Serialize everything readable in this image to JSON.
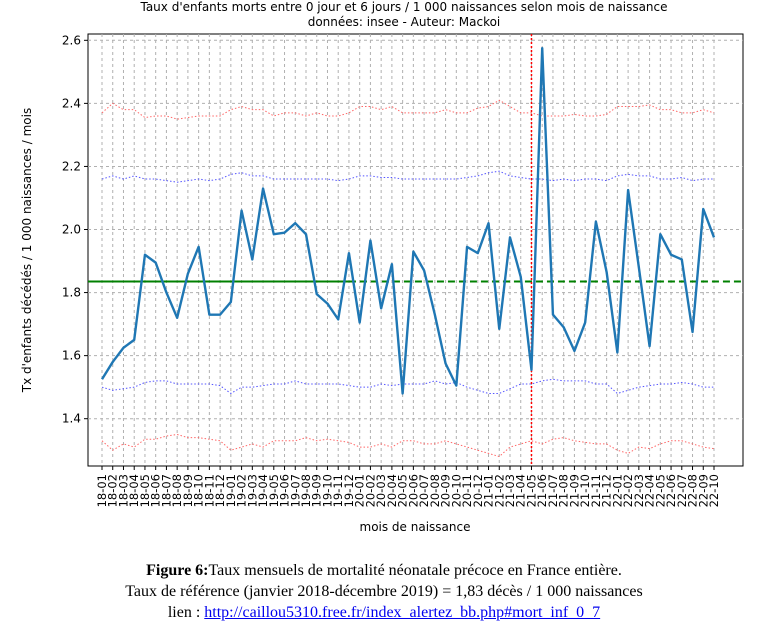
{
  "chart_data": {
    "type": "line",
    "title": "Taux d'enfants morts entre 0 jour et 6 jours / 1 000 naissances selon mois de naissance",
    "subtitle": "données: insee - Auteur: Mackoi",
    "xlabel": "mois de naissance",
    "ylabel": "Tx d'enfants décédés / 1 000 naissances / mois",
    "ylim": [
      1.25,
      2.62
    ],
    "yticks": [
      1.4,
      1.6,
      1.8,
      2.0,
      2.2,
      2.4,
      2.6
    ],
    "grid": true,
    "categories": [
      "18-01",
      "18-02",
      "18-03",
      "18-04",
      "18-05",
      "18-06",
      "18-07",
      "18-08",
      "18-09",
      "18-10",
      "18-11",
      "18-12",
      "19-01",
      "19-02",
      "19-03",
      "19-04",
      "19-05",
      "19-06",
      "19-07",
      "19-08",
      "19-09",
      "19-10",
      "19-11",
      "19-12",
      "20-01",
      "20-02",
      "20-03",
      "20-04",
      "20-05",
      "20-06",
      "20-07",
      "20-08",
      "20-09",
      "20-10",
      "20-11",
      "20-12",
      "21-01",
      "21-02",
      "21-03",
      "21-04",
      "21-05",
      "21-06",
      "21-07",
      "21-08",
      "21-09",
      "21-10",
      "21-11",
      "21-12",
      "22-01",
      "22-02",
      "22-03",
      "22-04",
      "22-05",
      "22-06",
      "22-07",
      "22-08",
      "22-09",
      "22-10"
    ],
    "series": [
      {
        "role": "rate",
        "color": "#1f77b4",
        "values": [
          1.525,
          1.58,
          1.625,
          1.65,
          1.92,
          1.895,
          1.8,
          1.72,
          1.86,
          1.945,
          1.73,
          1.73,
          1.77,
          2.06,
          1.905,
          2.13,
          1.985,
          1.99,
          2.02,
          1.985,
          1.795,
          1.765,
          1.715,
          1.925,
          1.705,
          1.965,
          1.75,
          1.89,
          1.48,
          1.93,
          1.87,
          1.73,
          1.575,
          1.505,
          1.945,
          1.925,
          2.02,
          1.685,
          1.975,
          1.85,
          1.555,
          2.575,
          1.73,
          1.69,
          1.615,
          1.705,
          2.025,
          1.865,
          1.61,
          2.125,
          1.88,
          1.63,
          1.985,
          1.92,
          1.905,
          1.675,
          2.065,
          1.975
        ]
      },
      {
        "role": "upper-outer",
        "color": "#ff6666",
        "values": [
          2.37,
          2.4,
          2.38,
          2.38,
          2.355,
          2.36,
          2.36,
          2.35,
          2.355,
          2.36,
          2.36,
          2.36,
          2.38,
          2.39,
          2.38,
          2.38,
          2.36,
          2.37,
          2.37,
          2.36,
          2.37,
          2.36,
          2.36,
          2.37,
          2.39,
          2.39,
          2.38,
          2.39,
          2.37,
          2.37,
          2.37,
          2.37,
          2.38,
          2.37,
          2.37,
          2.385,
          2.39,
          2.41,
          2.39,
          2.37,
          2.37,
          2.36,
          2.36,
          2.36,
          2.365,
          2.36,
          2.36,
          2.365,
          2.39,
          2.39,
          2.39,
          2.395,
          2.38,
          2.38,
          2.37,
          2.37,
          2.38,
          2.37
        ]
      },
      {
        "role": "upper-inner",
        "color": "#5555ff",
        "values": [
          2.16,
          2.17,
          2.16,
          2.17,
          2.16,
          2.16,
          2.155,
          2.15,
          2.155,
          2.16,
          2.155,
          2.16,
          2.175,
          2.18,
          2.17,
          2.17,
          2.16,
          2.16,
          2.16,
          2.16,
          2.16,
          2.16,
          2.155,
          2.16,
          2.17,
          2.17,
          2.165,
          2.165,
          2.16,
          2.16,
          2.16,
          2.16,
          2.16,
          2.16,
          2.165,
          2.17,
          2.18,
          2.185,
          2.17,
          2.165,
          2.16,
          2.16,
          2.155,
          2.16,
          2.155,
          2.16,
          2.16,
          2.155,
          2.17,
          2.175,
          2.17,
          2.17,
          2.16,
          2.16,
          2.165,
          2.155,
          2.16,
          2.16
        ]
      },
      {
        "role": "lower-inner",
        "color": "#5555ff",
        "values": [
          1.5,
          1.49,
          1.495,
          1.5,
          1.515,
          1.52,
          1.52,
          1.51,
          1.51,
          1.51,
          1.51,
          1.505,
          1.48,
          1.5,
          1.5,
          1.505,
          1.51,
          1.51,
          1.52,
          1.51,
          1.51,
          1.51,
          1.51,
          1.505,
          1.5,
          1.5,
          1.51,
          1.505,
          1.51,
          1.51,
          1.51,
          1.52,
          1.51,
          1.515,
          1.5,
          1.49,
          1.48,
          1.48,
          1.495,
          1.51,
          1.51,
          1.52,
          1.525,
          1.52,
          1.52,
          1.52,
          1.51,
          1.51,
          1.48,
          1.49,
          1.5,
          1.505,
          1.51,
          1.51,
          1.515,
          1.51,
          1.5,
          1.5
        ]
      },
      {
        "role": "lower-outer",
        "color": "#ff6666",
        "values": [
          1.33,
          1.3,
          1.32,
          1.31,
          1.335,
          1.335,
          1.345,
          1.35,
          1.34,
          1.34,
          1.335,
          1.33,
          1.3,
          1.31,
          1.32,
          1.31,
          1.33,
          1.33,
          1.33,
          1.34,
          1.33,
          1.335,
          1.33,
          1.325,
          1.31,
          1.31,
          1.32,
          1.31,
          1.33,
          1.33,
          1.32,
          1.32,
          1.33,
          1.32,
          1.31,
          1.3,
          1.29,
          1.28,
          1.31,
          1.32,
          1.33,
          1.32,
          1.335,
          1.34,
          1.33,
          1.325,
          1.32,
          1.32,
          1.3,
          1.29,
          1.31,
          1.305,
          1.32,
          1.33,
          1.33,
          1.32,
          1.31,
          1.305
        ]
      }
    ],
    "reference": {
      "value": 1.835,
      "color": "#008000",
      "solid_until": "19-12"
    },
    "marker": {
      "at": "21-05",
      "color": "#ff0000"
    }
  },
  "caption": {
    "fig_label": "Figure 6:",
    "line1": "Taux mensuels de mortalité néonatale précoce en France entière.",
    "line2": "Taux de référence (janvier 2018-décembre 2019)  = 1,83 décès / 1 000 naissances",
    "link_prefix": "lien : ",
    "link_text": "http://caillou5310.free.fr/index_alertez_bb.php#mort_inf_0_7"
  }
}
